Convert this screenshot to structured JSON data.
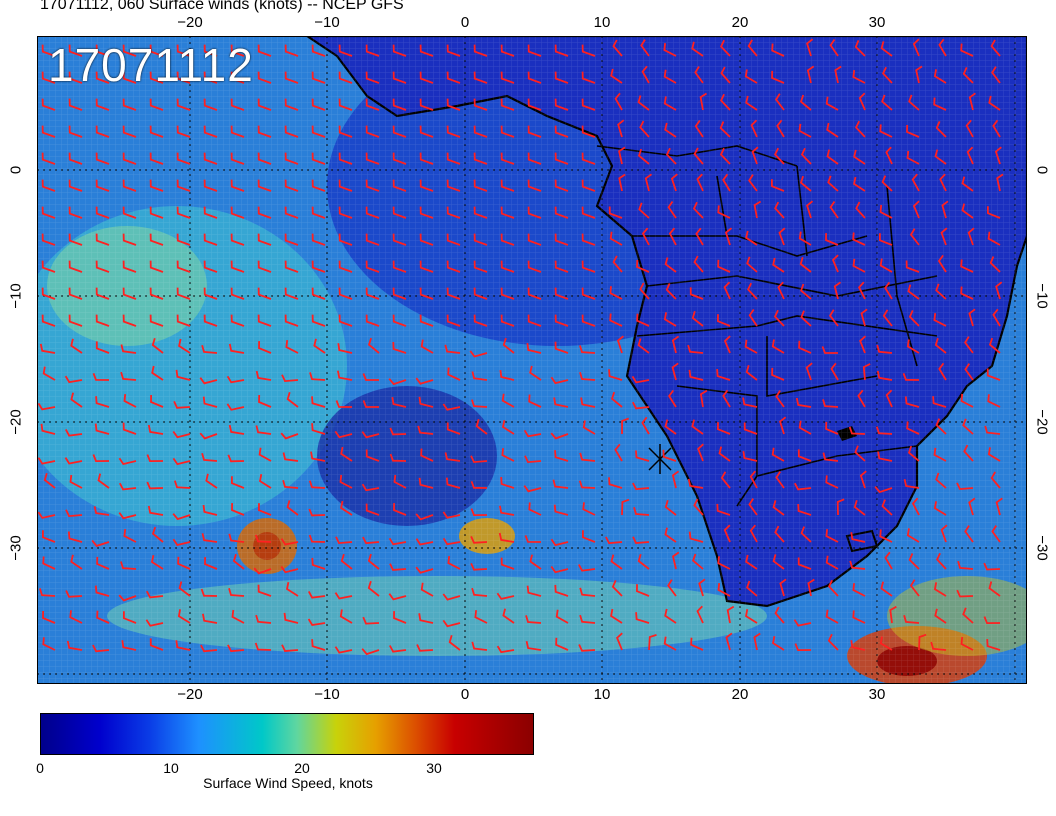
{
  "title": "17071112, 060 Surface winds (knots) -- NCEP GFS",
  "date_stamp": "17071112",
  "lon_labels": [
    "−20",
    "−10",
    "0",
    "10",
    "20",
    "30"
  ],
  "lat_labels": [
    "0",
    "−10",
    "−20",
    "−30"
  ],
  "colorbar": {
    "title": "Surface Wind Speed, knots",
    "labels": [
      "0",
      "10",
      "20",
      "30"
    ],
    "colors": [
      "#00008b",
      "#1e90ff",
      "#00c8c8",
      "#c8d20a",
      "#dc5000",
      "#8b0000"
    ]
  },
  "barb_color": "#ff2020",
  "land_color": "#1a2fbf",
  "ocean_color": "#2a7fd8"
}
